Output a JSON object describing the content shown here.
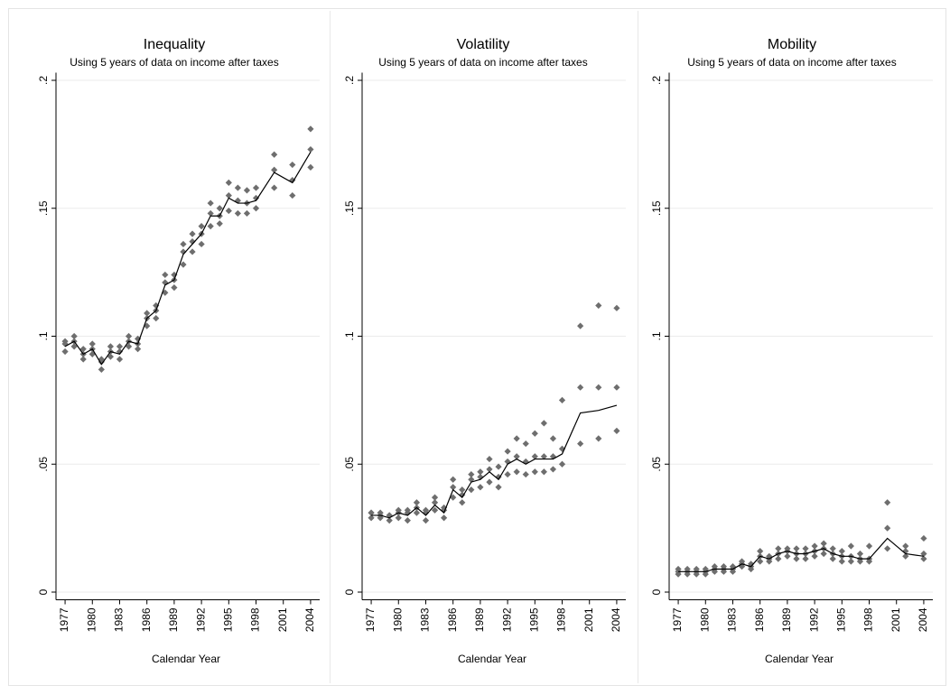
{
  "chart_data": [
    {
      "type": "scatter",
      "title": "Inequality",
      "subtitle": "Using 5 years of data on income after taxes",
      "xlabel": "Calendar Year",
      "x": [
        1977,
        1978,
        1979,
        1980,
        1981,
        1982,
        1983,
        1984,
        1985,
        1986,
        1987,
        1988,
        1989,
        1990,
        1991,
        1992,
        1993,
        1994,
        1995,
        1996,
        1997,
        1998,
        2000,
        2002,
        2004
      ],
      "scatter": [
        [
          0.094,
          0.096,
          0.091,
          0.093,
          0.087,
          0.092,
          0.091,
          0.096,
          0.095,
          0.104,
          0.107,
          0.117,
          0.119,
          0.128,
          0.133,
          0.136,
          0.143,
          0.144,
          0.149,
          0.148,
          0.148,
          0.15,
          0.158,
          0.155,
          0.166
        ],
        [
          0.097,
          0.098,
          0.093,
          0.095,
          0.09,
          0.094,
          0.094,
          0.098,
          0.097,
          0.107,
          0.11,
          0.121,
          0.122,
          0.133,
          0.137,
          0.14,
          0.148,
          0.147,
          0.155,
          0.153,
          0.152,
          0.154,
          0.165,
          0.161,
          0.173
        ],
        [
          0.098,
          0.1,
          0.095,
          0.097,
          0.091,
          0.096,
          0.096,
          0.1,
          0.099,
          0.109,
          0.112,
          0.124,
          0.124,
          0.136,
          0.14,
          0.143,
          0.152,
          0.15,
          0.16,
          0.158,
          0.157,
          0.158,
          0.171,
          0.167,
          0.181
        ]
      ],
      "line": [
        0.096,
        0.098,
        0.093,
        0.095,
        0.089,
        0.094,
        0.093,
        0.098,
        0.097,
        0.107,
        0.11,
        0.12,
        0.122,
        0.132,
        0.136,
        0.14,
        0.147,
        0.147,
        0.154,
        0.152,
        0.152,
        0.153,
        0.164,
        0.16,
        0.172
      ],
      "marker_color": "#6e6e6e",
      "line_color": "#000000",
      "grid": true,
      "xlim": [
        1976,
        2005
      ],
      "xticks": [
        1977,
        1980,
        1983,
        1986,
        1989,
        1992,
        1995,
        1998,
        2001,
        2004
      ],
      "ylim": [
        -0.003,
        0.203
      ],
      "yticks": [
        0,
        {
          "value": 0.05,
          "label": ".05"
        },
        {
          "value": 0.1,
          "label": ".1"
        },
        {
          "value": 0.15,
          "label": ".15"
        },
        {
          "value": 0.2,
          "label": ".2"
        }
      ]
    },
    {
      "type": "scatter",
      "title": "Volatility",
      "subtitle": "Using 5 years of data on income after taxes",
      "xlabel": "Calendar Year",
      "x": [
        1977,
        1978,
        1979,
        1980,
        1981,
        1982,
        1983,
        1984,
        1985,
        1986,
        1987,
        1988,
        1989,
        1990,
        1991,
        1992,
        1993,
        1994,
        1995,
        1996,
        1997,
        1998,
        2000,
        2002,
        2004
      ],
      "scatter": [
        [
          0.029,
          0.029,
          0.028,
          0.029,
          0.028,
          0.031,
          0.028,
          0.032,
          0.029,
          0.037,
          0.035,
          0.04,
          0.041,
          0.043,
          0.041,
          0.046,
          0.047,
          0.046,
          0.047,
          0.047,
          0.048,
          0.05,
          0.058,
          0.06,
          0.063
        ],
        [
          0.031,
          0.03,
          0.03,
          0.031,
          0.031,
          0.033,
          0.031,
          0.035,
          0.032,
          0.041,
          0.038,
          0.044,
          0.045,
          0.048,
          0.045,
          0.051,
          0.053,
          0.051,
          0.053,
          0.053,
          0.053,
          0.056,
          0.08,
          0.08,
          0.08
        ],
        [
          0.031,
          0.031,
          0.03,
          0.032,
          0.032,
          0.035,
          0.032,
          0.037,
          0.033,
          0.044,
          0.04,
          0.046,
          0.047,
          0.052,
          0.049,
          0.055,
          0.06,
          0.058,
          0.062,
          0.066,
          0.06,
          0.075,
          0.104,
          0.112,
          0.111
        ]
      ],
      "line": [
        0.03,
        0.03,
        0.029,
        0.031,
        0.03,
        0.033,
        0.03,
        0.034,
        0.031,
        0.04,
        0.037,
        0.043,
        0.044,
        0.047,
        0.044,
        0.05,
        0.052,
        0.05,
        0.052,
        0.052,
        0.052,
        0.054,
        0.07,
        0.071,
        0.073
      ],
      "marker_color": "#6e6e6e",
      "line_color": "#000000",
      "grid": true,
      "xlim": [
        1976,
        2005
      ],
      "xticks": [
        1977,
        1980,
        1983,
        1986,
        1989,
        1992,
        1995,
        1998,
        2001,
        2004
      ],
      "ylim": [
        -0.003,
        0.203
      ],
      "yticks": [
        0,
        {
          "value": 0.05,
          "label": ".05"
        },
        {
          "value": 0.1,
          "label": ".1"
        },
        {
          "value": 0.15,
          "label": ".15"
        },
        {
          "value": 0.2,
          "label": ".2"
        }
      ]
    },
    {
      "type": "scatter",
      "title": "Mobility",
      "subtitle": "Using 5 years of data on income after taxes",
      "xlabel": "Calendar Year",
      "x": [
        1977,
        1978,
        1979,
        1980,
        1981,
        1982,
        1983,
        1984,
        1985,
        1986,
        1987,
        1988,
        1989,
        1990,
        1991,
        1992,
        1993,
        1994,
        1995,
        1996,
        1997,
        1998,
        2000,
        2002,
        2004
      ],
      "scatter": [
        [
          0.007,
          0.007,
          0.007,
          0.007,
          0.008,
          0.008,
          0.008,
          0.01,
          0.009,
          0.012,
          0.012,
          0.013,
          0.014,
          0.013,
          0.013,
          0.014,
          0.015,
          0.013,
          0.012,
          0.012,
          0.012,
          0.012,
          0.017,
          0.014,
          0.013
        ],
        [
          0.008,
          0.008,
          0.008,
          0.008,
          0.009,
          0.009,
          0.009,
          0.011,
          0.01,
          0.014,
          0.013,
          0.015,
          0.016,
          0.015,
          0.015,
          0.016,
          0.017,
          0.015,
          0.014,
          0.014,
          0.013,
          0.013,
          0.025,
          0.016,
          0.015
        ],
        [
          0.009,
          0.009,
          0.009,
          0.009,
          0.01,
          0.01,
          0.01,
          0.012,
          0.011,
          0.016,
          0.014,
          0.017,
          0.017,
          0.017,
          0.017,
          0.018,
          0.019,
          0.017,
          0.016,
          0.018,
          0.015,
          0.018,
          0.035,
          0.018,
          0.021
        ]
      ],
      "line": [
        0.008,
        0.008,
        0.008,
        0.008,
        0.009,
        0.009,
        0.009,
        0.011,
        0.01,
        0.014,
        0.013,
        0.015,
        0.016,
        0.015,
        0.015,
        0.016,
        0.017,
        0.015,
        0.014,
        0.014,
        0.013,
        0.013,
        0.021,
        0.015,
        0.014
      ],
      "marker_color": "#6e6e6e",
      "line_color": "#000000",
      "grid": true,
      "xlim": [
        1976,
        2005
      ],
      "xticks": [
        1977,
        1980,
        1983,
        1986,
        1989,
        1992,
        1995,
        1998,
        2001,
        2004
      ],
      "ylim": [
        -0.003,
        0.203
      ],
      "yticks": [
        0,
        {
          "value": 0.05,
          "label": ".05"
        },
        {
          "value": 0.1,
          "label": ".1"
        },
        {
          "value": 0.15,
          "label": ".15"
        },
        {
          "value": 0.2,
          "label": ".2"
        }
      ]
    }
  ]
}
